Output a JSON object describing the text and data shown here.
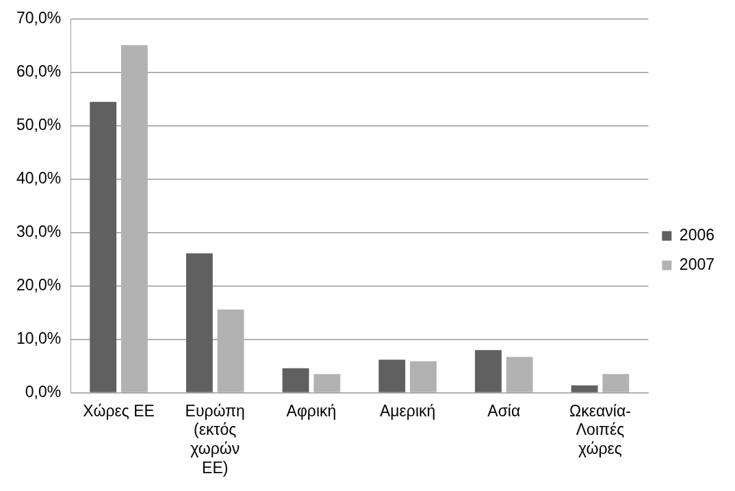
{
  "chart_data": {
    "type": "bar",
    "categories": [
      "Χώρες ΕΕ",
      "Ευρώπη (εκτός χωρών ΕΕ)",
      "Αφρική",
      "Αμερική",
      "Ασία",
      "Ωκεανία-Λοιπές χώρες"
    ],
    "series": [
      {
        "name": "2006",
        "color": "#606060",
        "values": [
          54.5,
          26.1,
          4.6,
          6.2,
          8.0,
          1.4
        ]
      },
      {
        "name": "2007",
        "color": "#b2b2b2",
        "values": [
          65.1,
          15.6,
          3.5,
          5.9,
          6.7,
          3.5
        ]
      }
    ],
    "ylim": [
      0,
      70
    ],
    "yticks": [
      {
        "value": 0,
        "label": "0,0%"
      },
      {
        "value": 10,
        "label": "10,0%"
      },
      {
        "value": 20,
        "label": "20,0%"
      },
      {
        "value": 30,
        "label": "30,0%"
      },
      {
        "value": 40,
        "label": "40,0%"
      },
      {
        "value": 50,
        "label": "50,0%"
      },
      {
        "value": 60,
        "label": "60,0%"
      },
      {
        "value": 70,
        "label": "70,0%"
      }
    ],
    "grid": "y",
    "legend": "right"
  }
}
